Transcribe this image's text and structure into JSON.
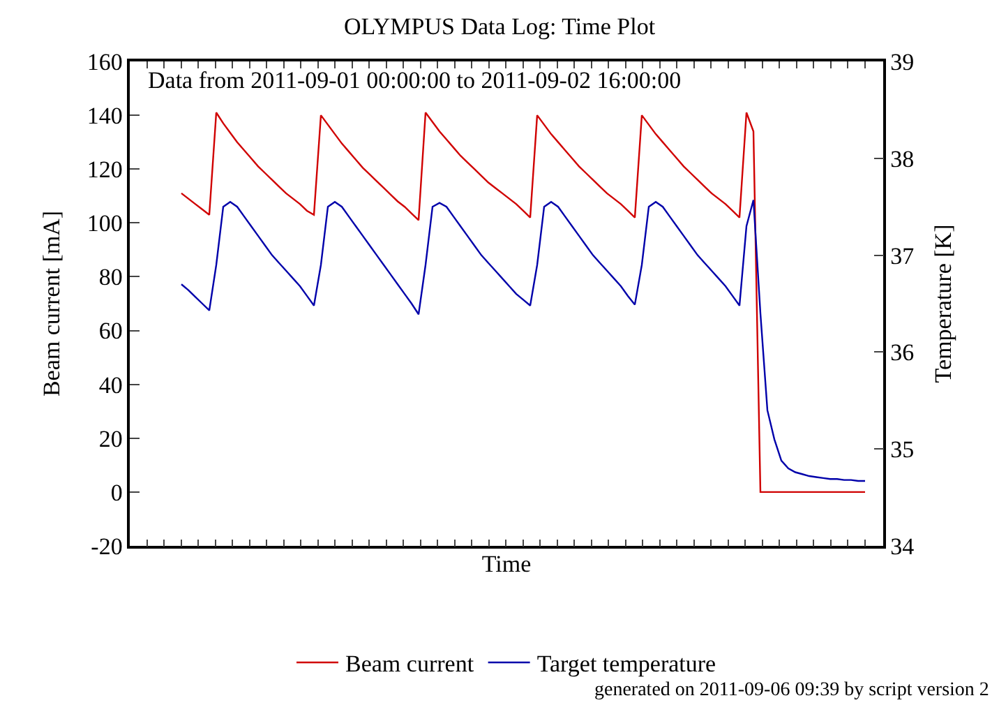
{
  "chart_data": {
    "type": "line",
    "title": "OLYMPUS Data Log: Time Plot",
    "xlabel": "Time",
    "ylabel": "Beam current [mA]",
    "y2label": "Temperature [K]",
    "categories": [
      null,
      null,
      null,
      null,
      null,
      null,
      null,
      null,
      null,
      null,
      null,
      null,
      null,
      null,
      null,
      null,
      null,
      null,
      null,
      null,
      null,
      null,
      null,
      null,
      null,
      null,
      null,
      null,
      null,
      null,
      null,
      null,
      null,
      null,
      null,
      null,
      null,
      null,
      null,
      null,
      null,
      null,
      null,
      null,
      null,
      null,
      null,
      null,
      null,
      null,
      null,
      null,
      null,
      null,
      null,
      null,
      null,
      null,
      null,
      null,
      null,
      null,
      null,
      null,
      null,
      null,
      null,
      null,
      null,
      null,
      null,
      null,
      null,
      null,
      null,
      null,
      null,
      null,
      null,
      null,
      null,
      null,
      null,
      null,
      null,
      null,
      null,
      null,
      null,
      null,
      null,
      null,
      null,
      null,
      null,
      null,
      null,
      null,
      null
    ],
    "series": [
      {
        "name": "Beam current",
        "color": "#d00000",
        "values": [
          111,
          109,
          107,
          105,
          103,
          141,
          137,
          133.5,
          130,
          127,
          124,
          121,
          118.5,
          116,
          113.5,
          111,
          109,
          107,
          104.5,
          103,
          140,
          136.5,
          133,
          129.5,
          126.5,
          123.5,
          120.5,
          118,
          115.5,
          113,
          110.5,
          108,
          106,
          103.5,
          101,
          141,
          137.5,
          134,
          131,
          128,
          125,
          122.5,
          120,
          117.5,
          115,
          113,
          111,
          109,
          107,
          104.5,
          102,
          140,
          136.5,
          133,
          130,
          127,
          124,
          121,
          118.5,
          116,
          113.5,
          111,
          109,
          107,
          104.5,
          102,
          140,
          136.5,
          133,
          130,
          127,
          124,
          121,
          118.5,
          116,
          113.5,
          111,
          109,
          107,
          104.5,
          102,
          141,
          134,
          0,
          0,
          0,
          0,
          0,
          0,
          0,
          0,
          0,
          0,
          0,
          0,
          0,
          0,
          0,
          0
        ]
      },
      {
        "name": "Target temperature",
        "color": "#0000aa",
        "axis": "y2",
        "values": [
          36.7,
          36.64,
          36.57,
          36.5,
          36.43,
          36.9,
          37.5,
          37.55,
          37.5,
          37.4,
          37.3,
          37.2,
          37.1,
          37.0,
          36.92,
          36.84,
          36.76,
          36.68,
          36.58,
          36.48,
          36.9,
          37.5,
          37.55,
          37.5,
          37.4,
          37.3,
          37.2,
          37.1,
          37.0,
          36.9,
          36.8,
          36.7,
          36.6,
          36.5,
          36.39,
          36.9,
          37.5,
          37.54,
          37.5,
          37.4,
          37.3,
          37.2,
          37.1,
          37.0,
          36.92,
          36.84,
          36.76,
          36.68,
          36.6,
          36.54,
          36.48,
          36.9,
          37.5,
          37.55,
          37.5,
          37.4,
          37.3,
          37.2,
          37.1,
          37.0,
          36.92,
          36.84,
          36.76,
          36.68,
          36.58,
          36.49,
          36.9,
          37.5,
          37.55,
          37.5,
          37.4,
          37.3,
          37.2,
          37.1,
          37.0,
          36.92,
          36.84,
          36.76,
          36.68,
          36.58,
          36.48,
          37.3,
          37.57,
          36.4,
          35.4,
          35.1,
          34.88,
          34.8,
          34.76,
          34.74,
          34.72,
          34.71,
          34.7,
          34.69,
          34.69,
          34.68,
          34.68,
          34.67,
          34.67
        ]
      }
    ],
    "ylim": [
      -20,
      160
    ],
    "yticks": [
      -20,
      0,
      20,
      40,
      60,
      80,
      100,
      120,
      140,
      160
    ],
    "y2lim": [
      34,
      39
    ],
    "y2ticks": [
      34,
      35,
      36,
      37,
      38,
      39
    ],
    "tick_labels": "y",
    "legend": "bottom",
    "marker": "none",
    "line_style": "solid",
    "annotations": [
      "Data from 2011-09-01 00:00:00 to 2011-09-02 16:00:00",
      "generated on 2011-09-06 09:39 by script version 2"
    ]
  }
}
